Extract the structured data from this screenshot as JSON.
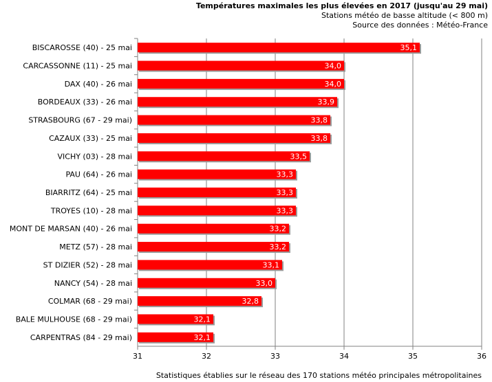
{
  "chart_data": {
    "type": "bar",
    "orientation": "horizontal",
    "title": "Températures maximales les plus élevées en 2017 (jusqu'au 29 mai)",
    "subtitle1": "Stations météo de basse altitude (< 800 m)",
    "subtitle2": "Source des données : Météo-France",
    "footer": "Statistiques établies sur le réseau des 170 stations météo principales métropolitaines",
    "categories": [
      "BISCAROSSE (40) - 25 mai",
      "CARCASSONNE (11) - 25 mai",
      "DAX (40) - 26 mai",
      "BORDEAUX (33) - 26 mai",
      "STRASBOURG (67 - 29 mai)",
      "CAZAUX (33) - 25 mai",
      "VICHY (03) - 28 mai",
      "PAU (64) - 26 mai",
      "BIARRITZ (64) - 25 mai",
      "TROYES (10) - 28 mai",
      "MONT DE MARSAN (40) - 26 mai",
      "METZ (57) - 28 mai",
      "ST DIZIER (52) - 28 mai",
      "NANCY (54) - 28 mai",
      "COLMAR (68 - 29 mai)",
      "BALE MULHOUSE (68 - 29 mai)",
      "CARPENTRAS (84  - 29 mai)"
    ],
    "values": [
      35.1,
      34.0,
      34.0,
      33.9,
      33.8,
      33.8,
      33.5,
      33.3,
      33.3,
      33.3,
      33.2,
      33.2,
      33.1,
      33.0,
      32.8,
      32.1,
      32.1
    ],
    "value_labels": [
      "35,1",
      "34,0",
      "34,0",
      "33,9",
      "33,8",
      "33,8",
      "33,5",
      "33,3",
      "33,3",
      "33,3",
      "33,2",
      "33,2",
      "33,1",
      "33,0",
      "32,8",
      "32,1",
      "32,1"
    ],
    "xlim": [
      31,
      36
    ],
    "xticks": [
      "31",
      "32",
      "33",
      "34",
      "35",
      "36"
    ],
    "grid": "vertical",
    "bar_color": "#ff0000"
  }
}
